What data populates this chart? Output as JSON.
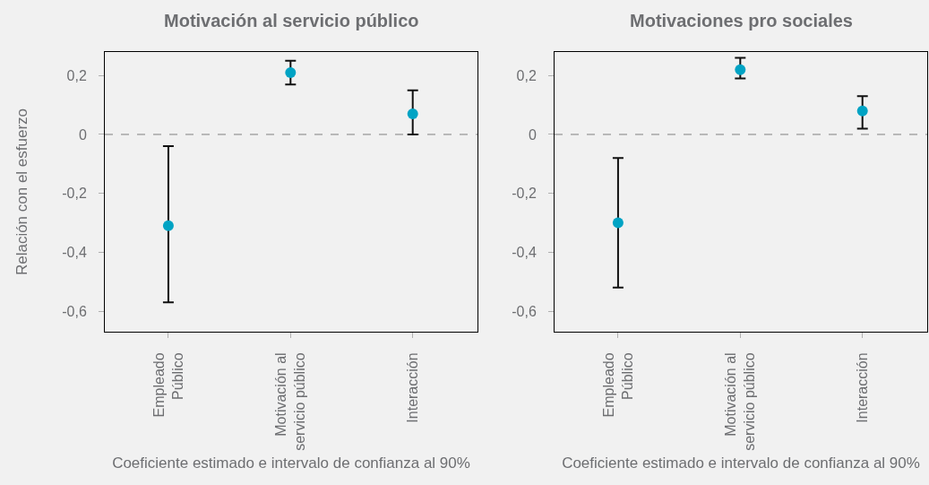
{
  "chart_data": [
    {
      "type": "scatter",
      "title": "Motivación al servicio público",
      "xlabel": "Coeficiente estimado e intervalo de confianza al 90%",
      "ylabel": "Relación con el esfuerzo",
      "categories": [
        "Empleado\nPúblico",
        "Motivación al\nservicio público",
        "Interacción"
      ],
      "values": [
        -0.31,
        0.21,
        0.07
      ],
      "errors": [
        [
          -0.57,
          -0.04
        ],
        [
          0.17,
          0.25
        ],
        [
          0.0,
          0.15
        ]
      ],
      "color": "#00a3c4",
      "marker": "circle",
      "ylim": [
        -0.67,
        0.28
      ],
      "yticks": [
        {
          "value": -0.6,
          "label": "-0,6"
        },
        {
          "value": -0.4,
          "label": "-0,4"
        },
        {
          "value": -0.2,
          "label": "-0,2"
        },
        0,
        {
          "value": 0.2,
          "label": "0,2"
        }
      ],
      "ref_lines": [
        {
          "axis": "y",
          "value": 0,
          "color": "#808080",
          "line_style": "dashed"
        }
      ]
    },
    {
      "type": "scatter",
      "title": "Motivaciones pro sociales",
      "xlabel": "Coeficiente estimado e intervalo de confianza al 90%",
      "categories": [
        "Empleado\nPúblico",
        "Motivación al\nservicio público",
        "Interacción"
      ],
      "values": [
        -0.3,
        0.22,
        0.08
      ],
      "errors": [
        [
          -0.52,
          -0.08
        ],
        [
          0.19,
          0.26
        ],
        [
          0.02,
          0.13
        ]
      ],
      "color": "#00a3c4",
      "marker": "circle",
      "ylim": [
        -0.67,
        0.28
      ],
      "yticks": [
        {
          "value": -0.6,
          "label": "-0,6"
        },
        {
          "value": -0.4,
          "label": "-0,4"
        },
        {
          "value": -0.2,
          "label": "-0,2"
        },
        0,
        {
          "value": 0.2,
          "label": "0,2"
        }
      ],
      "ref_lines": [
        {
          "axis": "y",
          "value": 0,
          "color": "#808080",
          "line_style": "dashed"
        }
      ]
    }
  ]
}
